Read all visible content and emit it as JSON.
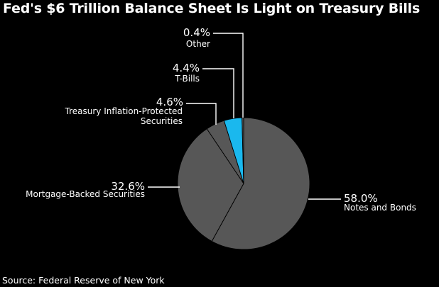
{
  "chart_data": {
    "type": "pie",
    "title": "Fed's $6 Trillion Balance Sheet Is Light on Treasury Bills",
    "source": "Source: Federal Reserve of New York",
    "slices": [
      {
        "name": "Notes and Bonds",
        "label_lines": [
          "Notes and Bonds"
        ],
        "value": 58.0,
        "value_label": "58.0%",
        "color": "#575757"
      },
      {
        "name": "Mortgage-Backed Securities",
        "label_lines": [
          "Mortgage-Backed Securities"
        ],
        "value": 32.6,
        "value_label": "32.6%",
        "color": "#575757"
      },
      {
        "name": "Treasury Inflation-Protected Securities",
        "label_lines": [
          "Treasury Inflation-Protected",
          "Securities"
        ],
        "value": 4.6,
        "value_label": "4.6%",
        "color": "#575757"
      },
      {
        "name": "T-Bills",
        "label_lines": [
          "T-Bills"
        ],
        "value": 4.4,
        "value_label": "4.4%",
        "color": "#1ab8ee"
      },
      {
        "name": "Other",
        "label_lines": [
          "Other"
        ],
        "value": 0.4,
        "value_label": "0.4%",
        "color": "#575757"
      }
    ]
  }
}
